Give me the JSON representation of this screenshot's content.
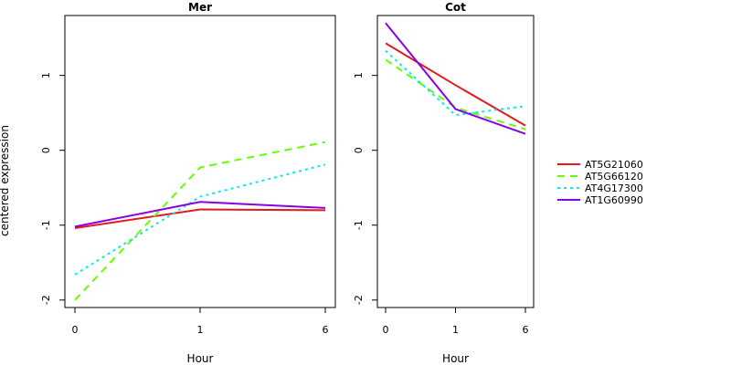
{
  "chart_data": {
    "type": "line",
    "ylabel": "centered expression",
    "legend_position": "right",
    "grid": false,
    "series_styles": [
      {
        "name": "AT5G21060",
        "color": "#e31a1c",
        "dash": ""
      },
      {
        "name": "AT5G66120",
        "color": "#66ff00",
        "dash": "8,6"
      },
      {
        "name": "AT4G17300",
        "color": "#00eeee",
        "dash": "3,4"
      },
      {
        "name": "AT1G60990",
        "color": "#8a00e6",
        "dash": ""
      }
    ],
    "panels": [
      {
        "title": "Mer",
        "xlabel": "Hour",
        "categories": [
          "0",
          "1",
          "6"
        ],
        "ylim": [
          -2.1,
          1.8
        ],
        "yticks": [
          -2,
          -1,
          0,
          1
        ],
        "series": [
          {
            "name": "AT5G21060",
            "values": [
              -1.04,
              -0.79,
              -0.8
            ]
          },
          {
            "name": "AT5G66120",
            "values": [
              -2.0,
              -0.23,
              0.11
            ]
          },
          {
            "name": "AT4G17300",
            "values": [
              -1.66,
              -0.62,
              -0.19
            ]
          },
          {
            "name": "AT1G60990",
            "values": [
              -1.02,
              -0.69,
              -0.77
            ]
          }
        ]
      },
      {
        "title": "Cot",
        "xlabel": "Hour",
        "categories": [
          "0",
          "1",
          "6"
        ],
        "ylim": [
          -2.1,
          1.8
        ],
        "yticks": [
          -2,
          -1,
          0,
          1
        ],
        "series": [
          {
            "name": "AT5G21060",
            "values": [
              1.43,
              0.87,
              0.33
            ]
          },
          {
            "name": "AT5G66120",
            "values": [
              1.21,
              0.57,
              0.28
            ]
          },
          {
            "name": "AT4G17300",
            "values": [
              1.33,
              0.47,
              0.59
            ]
          },
          {
            "name": "AT1G60990",
            "values": [
              1.7,
              0.55,
              0.22
            ]
          }
        ]
      }
    ]
  }
}
